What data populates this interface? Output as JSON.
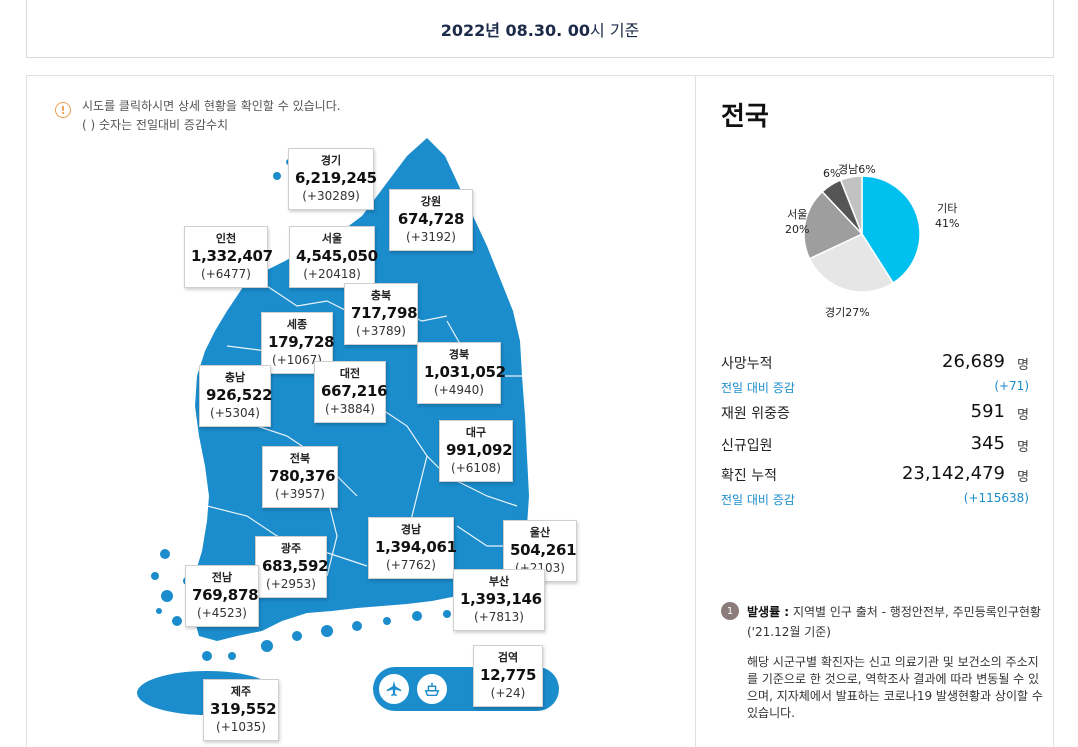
{
  "header": {
    "date_bold": "2022년 08.30. 00",
    "date_suffix": "시 기준"
  },
  "notice": {
    "line1": "시도를 클릭하시면 상세 현황을 확인할 수 있습니다.",
    "line2": "( ) 숫자는 전일대비 증감수치"
  },
  "regions": [
    {
      "key": "gyeonggi",
      "name": "경기",
      "total": "6,219,245",
      "delta": "(+30289)"
    },
    {
      "key": "gangwon",
      "name": "강원",
      "total": "674,728",
      "delta": "(+3192)"
    },
    {
      "key": "incheon",
      "name": "인천",
      "total": "1,332,407",
      "delta": "(+6477)"
    },
    {
      "key": "seoul",
      "name": "서울",
      "total": "4,545,050",
      "delta": "(+20418)"
    },
    {
      "key": "chungbuk",
      "name": "충북",
      "total": "717,798",
      "delta": "(+3789)"
    },
    {
      "key": "sejong",
      "name": "세종",
      "total": "179,728",
      "delta": "(+1067)"
    },
    {
      "key": "gyeongbuk",
      "name": "경북",
      "total": "1,031,052",
      "delta": "(+4940)"
    },
    {
      "key": "chungnam",
      "name": "충남",
      "total": "926,522",
      "delta": "(+5304)"
    },
    {
      "key": "daejeon",
      "name": "대전",
      "total": "667,216",
      "delta": "(+3884)"
    },
    {
      "key": "daegu",
      "name": "대구",
      "total": "991,092",
      "delta": "(+6108)"
    },
    {
      "key": "jeonbuk",
      "name": "전북",
      "total": "780,376",
      "delta": "(+3957)"
    },
    {
      "key": "gyeongnam",
      "name": "경남",
      "total": "1,394,061",
      "delta": "(+7762)"
    },
    {
      "key": "ulsan",
      "name": "울산",
      "total": "504,261",
      "delta": "(+2103)"
    },
    {
      "key": "gwangju",
      "name": "광주",
      "total": "683,592",
      "delta": "(+2953)"
    },
    {
      "key": "jeonnam",
      "name": "전남",
      "total": "769,878",
      "delta": "(+4523)"
    },
    {
      "key": "busan",
      "name": "부산",
      "total": "1,393,146",
      "delta": "(+7813)"
    },
    {
      "key": "quarantine",
      "name": "검역",
      "total": "12,775",
      "delta": "(+24)"
    },
    {
      "key": "jeju",
      "name": "제주",
      "total": "319,552",
      "delta": "(+1035)"
    }
  ],
  "icons": {
    "airport": "airplane-icon",
    "port": "ship-icon",
    "info": "info-icon"
  },
  "national": {
    "title": "전국",
    "pie": [
      {
        "name": "기타",
        "percent": 41,
        "color": "#00c0f0"
      },
      {
        "name": "경기",
        "percent": 27,
        "color": "#e6e6e6"
      },
      {
        "name": "서울",
        "percent": 20,
        "color": "#9e9e9e"
      },
      {
        "name": "",
        "percent": 6,
        "color": "#555555"
      },
      {
        "name": "경남",
        "percent": 6,
        "color": "#c2c2c2"
      }
    ],
    "pie_labels": {
      "other_name": "기타",
      "other_pct": "41%",
      "gg": "경기27%",
      "seoul_name": "서울",
      "seoul_pct": "20%",
      "small": "6%",
      "gn": "경남6%"
    },
    "stats": {
      "deaths_label": "사망누적",
      "deaths_value": "26,689",
      "deaths_unit": "명",
      "deaths_sub_label": "전일 대비 증감",
      "deaths_sub_value": "(+71)",
      "critical_label": "재원 위중증",
      "critical_value": "591",
      "critical_unit": "명",
      "admit_label": "신규입원",
      "admit_value": "345",
      "admit_unit": "명",
      "cases_label": "확진 누적",
      "cases_value": "23,142,479",
      "cases_unit": "명",
      "cases_sub_label": "전일 대비 증감",
      "cases_sub_value": "(+115638)"
    }
  },
  "footnote": {
    "number": "1",
    "title": "발생률 :",
    "line1": "지역별 인구 출처 - 행정안전부, 주민등록인구현황",
    "line2": "('21.12월 기준)",
    "para": "해당 시군구별 확진자는 신고 의료기관 및 보건소의 주소지를 기준으로 한 것으로, 역학조사 결과에 따라 변동될 수 있으며, 지자체에서 발표하는 코로나19 발생현황과 상이할 수 있습니다."
  },
  "colors": {
    "map": "#1b8ccc",
    "accent": "#1b8ccc",
    "warning": "#f0a050"
  }
}
